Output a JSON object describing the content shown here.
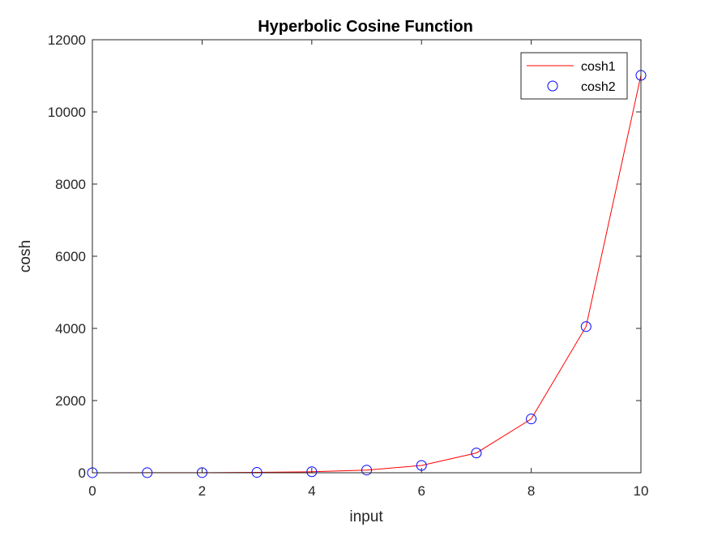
{
  "chart_data": {
    "type": "line",
    "title": "Hyperbolic Cosine Function",
    "xlabel": "input",
    "ylabel": "cosh",
    "xlim": [
      0,
      10
    ],
    "ylim": [
      0,
      12000
    ],
    "xticks": [
      0,
      2,
      4,
      6,
      8,
      10
    ],
    "yticks": [
      0,
      2000,
      4000,
      6000,
      8000,
      10000,
      12000
    ],
    "x": [
      0,
      1,
      2,
      3,
      4,
      5,
      6,
      7,
      8,
      9,
      10
    ],
    "series": [
      {
        "name": "cosh1",
        "style": "line",
        "color": "#ff0000",
        "values": [
          1,
          1.543,
          3.762,
          10.068,
          27.308,
          74.21,
          201.716,
          548.317,
          1490.479,
          4051.542,
          11013.233
        ]
      },
      {
        "name": "cosh2",
        "style": "circle-markers",
        "color": "#0000ff",
        "values": [
          1,
          1.543,
          3.762,
          10.068,
          27.308,
          74.21,
          201.716,
          548.317,
          1490.479,
          4051.542,
          11013.233
        ]
      }
    ],
    "grid": false,
    "legend_position": "top-right"
  }
}
